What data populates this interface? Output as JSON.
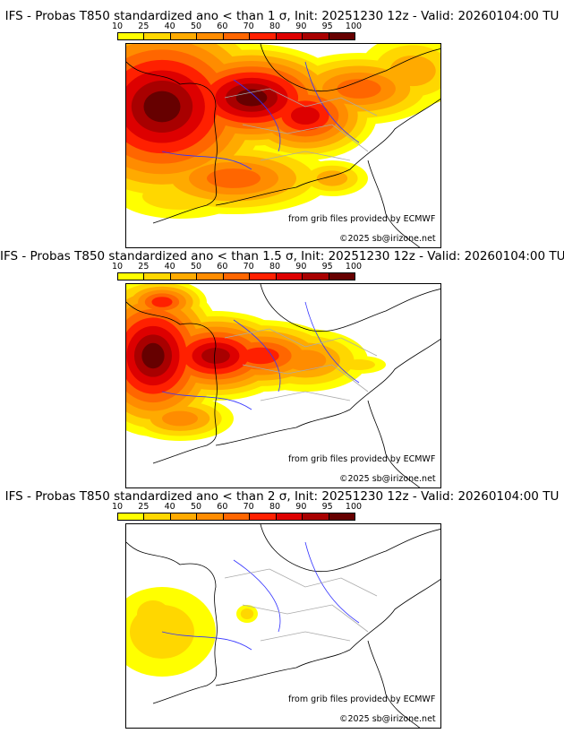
{
  "panels": [
    {
      "title": "IFS - Probas T850  standardized ano < than 1 σ, Init: 20251230 12z - Valid: 20260104:00 TU"
    },
    {
      "title": "IFS - Probas T850  standardized ano < than 1.5 σ, Init: 20251230 12z - Valid: 20260104:00 TU"
    },
    {
      "title": "IFS - Probas T850  standardized ano < than 2 σ, Init: 20251230 12z - Valid: 20260104:00 TU"
    }
  ],
  "colorbar": {
    "ticks": [
      "10",
      "25",
      "40",
      "50",
      "60",
      "70",
      "80",
      "90",
      "95",
      "100"
    ],
    "colors": [
      "#ffff00",
      "#ffd700",
      "#ffaa00",
      "#ff8c00",
      "#ff6600",
      "#ff2000",
      "#dd0000",
      "#a80000",
      "#660000"
    ]
  },
  "credits": {
    "source": "from grib files provided by ECMWF",
    "copyright": "©2025 sb@irizone.net"
  }
}
